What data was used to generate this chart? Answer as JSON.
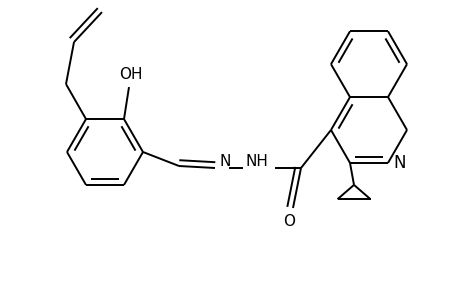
{
  "bg_color": "#ffffff",
  "line_color": "#000000",
  "lw": 1.4,
  "fs": 11,
  "fig_w": 4.6,
  "fig_h": 3.0,
  "dpi": 100,
  "xlim": [
    0,
    4.6
  ],
  "ylim": [
    0,
    3.0
  ],
  "ring_r": 0.38,
  "dbl_off": 0.058,
  "dbl_shorten": 0.13
}
